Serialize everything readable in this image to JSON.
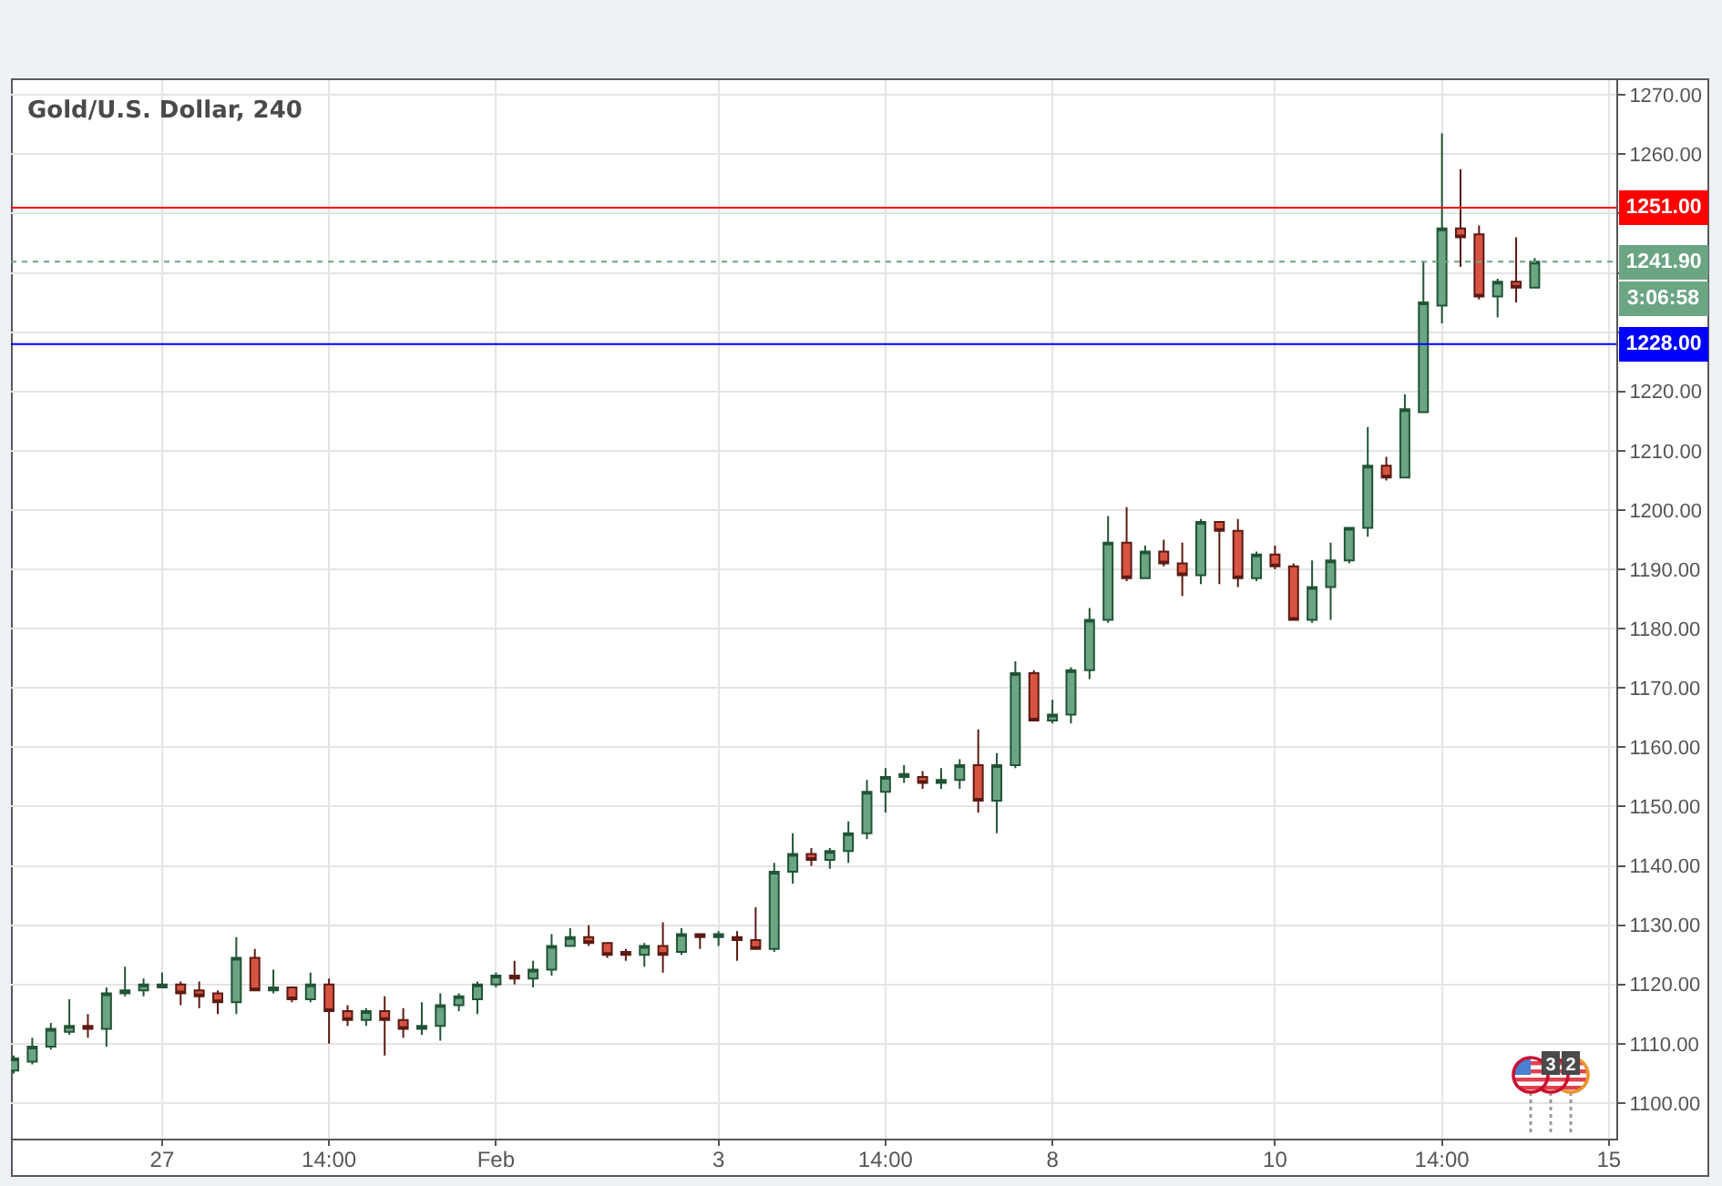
{
  "chart_data": {
    "type": "candlestick",
    "title": "Gold/U.S. Dollar, 240",
    "categories": [
      null,
      null,
      null,
      null,
      null,
      null,
      null,
      null,
      "27",
      null,
      null,
      null,
      null,
      null,
      null,
      null,
      null,
      "14:00",
      null,
      null,
      null,
      null,
      null,
      null,
      null,
      null,
      "Feb",
      null,
      null,
      null,
      null,
      null,
      null,
      null,
      null,
      null,
      null,
      null,
      "3",
      null,
      null,
      null,
      null,
      null,
      null,
      null,
      null,
      "14:00",
      null,
      null,
      null,
      null,
      null,
      null,
      null,
      null,
      "8",
      null,
      null,
      null,
      null,
      null,
      null,
      null,
      null,
      null,
      null,
      null,
      "10",
      null,
      null,
      null,
      null,
      null,
      null,
      null,
      null,
      "14:00",
      null,
      null,
      null,
      null,
      null,
      null,
      null,
      null,
      "15"
    ],
    "ohlc": [
      [
        1105.5,
        1108,
        1105,
        1107.5
      ],
      [
        1107,
        1111,
        1106.5,
        1109.5
      ],
      [
        1109.5,
        1113.5,
        1109,
        1112.5
      ],
      [
        1112,
        1117.5,
        1111.5,
        1113
      ],
      [
        1113,
        1115,
        1111,
        1112.5
      ],
      [
        1112.5,
        1119.5,
        1109.5,
        1118.5
      ],
      [
        1118.5,
        1123,
        1118,
        1119
      ],
      [
        1119,
        1121,
        1118,
        1120
      ],
      [
        1119.5,
        1122,
        1119.5,
        1120
      ],
      [
        1120,
        1120.5,
        1116.5,
        1118.5
      ],
      [
        1119,
        1120.5,
        1116,
        1118
      ],
      [
        1118.5,
        1119,
        1115,
        1117
      ],
      [
        1117,
        1128,
        1115,
        1124.5
      ],
      [
        1124.5,
        1126,
        1119,
        1119
      ],
      [
        1119,
        1122.5,
        1118.5,
        1119.5
      ],
      [
        1119.5,
        1119.5,
        1117,
        1117.5
      ],
      [
        1117.5,
        1122,
        1117,
        1120
      ],
      [
        1120,
        1121,
        1110,
        1115.5
      ],
      [
        1115.5,
        1116.5,
        1113,
        1114
      ],
      [
        1114,
        1116,
        1113,
        1115.5
      ],
      [
        1115.5,
        1118,
        1108,
        1114
      ],
      [
        1114,
        1116,
        1111,
        1112.5
      ],
      [
        1112.5,
        1117,
        1111.5,
        1113
      ],
      [
        1113,
        1118.5,
        1110.5,
        1116.5
      ],
      [
        1116.5,
        1118.5,
        1115.5,
        1118
      ],
      [
        1117.5,
        1120.5,
        1115,
        1120
      ],
      [
        1120,
        1122,
        1119.5,
        1121.5
      ],
      [
        1121.5,
        1124,
        1120,
        1121
      ],
      [
        1121,
        1124,
        1119.5,
        1122.5
      ],
      [
        1122.5,
        1128.5,
        1121.5,
        1126.5
      ],
      [
        1126.5,
        1129.5,
        1126.5,
        1128
      ],
      [
        1128,
        1130,
        1126.5,
        1127
      ],
      [
        1127,
        1127,
        1124.5,
        1125
      ],
      [
        1125.5,
        1126,
        1124,
        1125
      ],
      [
        1125,
        1127,
        1123,
        1126.5
      ],
      [
        1126.5,
        1130.5,
        1122,
        1125
      ],
      [
        1125.5,
        1129.5,
        1125,
        1128.5
      ],
      [
        1128.5,
        1128.5,
        1126,
        1128
      ],
      [
        1128,
        1129,
        1126.5,
        1128.5
      ],
      [
        1128,
        1129,
        1124,
        1127.5
      ],
      [
        1127.5,
        1133,
        1126,
        1126
      ],
      [
        1126,
        1140.5,
        1125.5,
        1139
      ],
      [
        1139,
        1145.5,
        1137,
        1142
      ],
      [
        1142,
        1143,
        1140,
        1141
      ],
      [
        1141,
        1143,
        1139.5,
        1142.5
      ],
      [
        1142.5,
        1147.5,
        1140.5,
        1145.5
      ],
      [
        1145.5,
        1154.5,
        1144.5,
        1152.5
      ],
      [
        1152.5,
        1156.5,
        1149,
        1155
      ],
      [
        1155,
        1157,
        1154,
        1155.5
      ],
      [
        1155,
        1156,
        1153,
        1154
      ],
      [
        1154,
        1156.5,
        1153,
        1154.5
      ],
      [
        1154.5,
        1158,
        1153,
        1157
      ],
      [
        1157,
        1163,
        1149,
        1151
      ],
      [
        1151,
        1159,
        1145.5,
        1157
      ],
      [
        1157,
        1174.5,
        1156.5,
        1172.5
      ],
      [
        1172.5,
        1173,
        1164.5,
        1164.5
      ],
      [
        1164.5,
        1168,
        1164,
        1165.5
      ],
      [
        1165.5,
        1173.5,
        1164,
        1173
      ],
      [
        1173,
        1183.5,
        1171.5,
        1181.5
      ],
      [
        1181.5,
        1199,
        1181,
        1194.5
      ],
      [
        1194.5,
        1200.5,
        1188,
        1188.5
      ],
      [
        1188.5,
        1194,
        1188.5,
        1193
      ],
      [
        1193,
        1195,
        1190.5,
        1191
      ],
      [
        1191,
        1194.5,
        1185.5,
        1189
      ],
      [
        1189,
        1198.5,
        1187.5,
        1198
      ],
      [
        1198,
        1198,
        1187.5,
        1196.5
      ],
      [
        1196.5,
        1198.5,
        1187,
        1188.5
      ],
      [
        1188.5,
        1193,
        1188,
        1192.5
      ],
      [
        1192.5,
        1194,
        1190,
        1190.5
      ],
      [
        1190.5,
        1191,
        1181.5,
        1181.5
      ],
      [
        1181.5,
        1191.5,
        1181,
        1187
      ],
      [
        1187,
        1194.5,
        1181.5,
        1191.5
      ],
      [
        1191.5,
        1197,
        1191,
        1197
      ],
      [
        1197,
        1214,
        1195.5,
        1207.5
      ],
      [
        1207.5,
        1209,
        1205,
        1205.5
      ],
      [
        1205.5,
        1219.5,
        1205.5,
        1217
      ],
      [
        1216.5,
        1242,
        1216.5,
        1235
      ],
      [
        1234.5,
        1263.5,
        1231.5,
        1247.5
      ],
      [
        1247.5,
        1257.5,
        1241,
        1246
      ],
      [
        1246.5,
        1248,
        1235.5,
        1236
      ],
      [
        1236,
        1239,
        1232.5,
        1238.5
      ],
      [
        1238.5,
        1246,
        1235,
        1237.5
      ],
      [
        1237.5,
        1242.5,
        1237.5,
        1241.9
      ],
      null,
      null,
      null,
      null
    ],
    "ylim": [
      1094,
      1272.5
    ],
    "yticks": [
      {
        "value": 1100,
        "label": "1100.00"
      },
      {
        "value": 1110,
        "label": "1110.00"
      },
      {
        "value": 1120,
        "label": "1120.00"
      },
      {
        "value": 1130,
        "label": "1130.00"
      },
      {
        "value": 1140,
        "label": "1140.00"
      },
      {
        "value": 1150,
        "label": "1150.00"
      },
      {
        "value": 1160,
        "label": "1160.00"
      },
      {
        "value": 1170,
        "label": "1170.00"
      },
      {
        "value": 1180,
        "label": "1180.00"
      },
      {
        "value": 1190,
        "label": "1190.00"
      },
      {
        "value": 1200,
        "label": "1200.00"
      },
      {
        "value": 1210,
        "label": "1210.00"
      },
      {
        "value": 1220,
        "label": "1220.00"
      },
      {
        "value": 1230,
        "label": null
      },
      {
        "value": 1240,
        "label": null
      },
      {
        "value": 1250,
        "label": null
      },
      {
        "value": 1260,
        "label": "1260.00"
      },
      {
        "value": 1270,
        "label": "1270.00"
      }
    ],
    "ref_lines": [
      {
        "axis": "y",
        "value": 1251,
        "label": "1251.00",
        "color": "#ff0000"
      },
      {
        "axis": "y",
        "value": 1228,
        "label": "1228.00",
        "color": "#0000ff"
      },
      {
        "axis": "y",
        "value": 1241.9,
        "label": "1241.90",
        "color": "#6ba583",
        "line_style": "dotted"
      }
    ],
    "annotations": [
      "3:06:58",
      "3",
      "2"
    ],
    "grid": true
  }
}
